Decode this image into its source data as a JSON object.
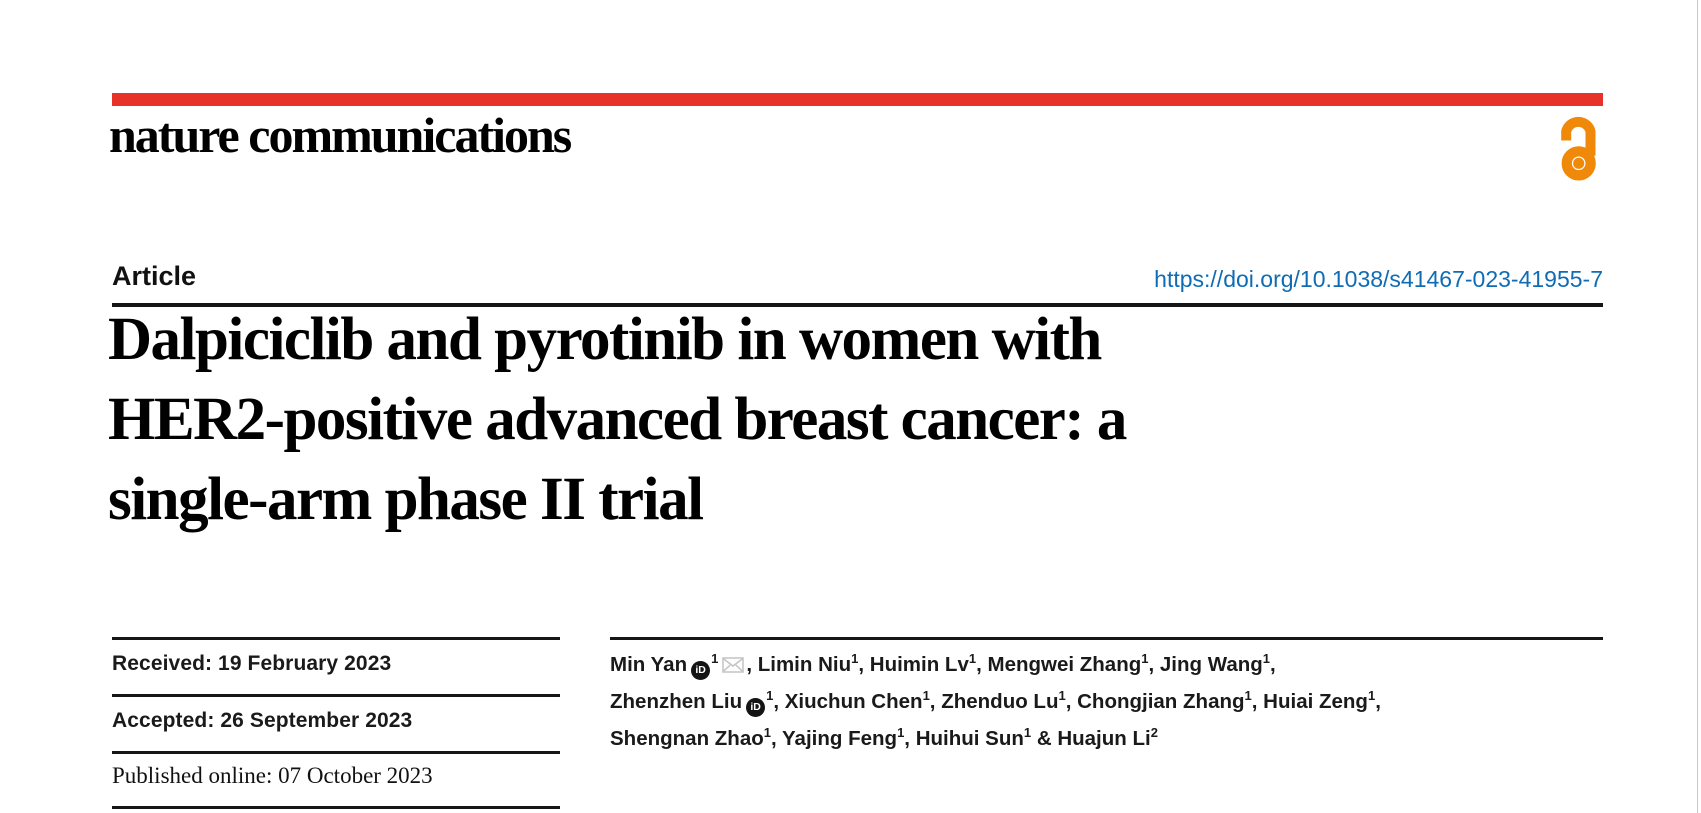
{
  "journal": {
    "logo": "nature communications"
  },
  "colors": {
    "brand_bar_red": "#e63228",
    "open_access_orange": "#f0890a",
    "doi_link_blue": "#0f6cb4"
  },
  "header": {
    "open_access_icon": "open-access-unlocked-padlock"
  },
  "article": {
    "label": "Article",
    "doi": "https://doi.org/10.1038/s41467-023-41955-7",
    "title_lines": [
      "Dalpiciclib and pyrotinib in women with",
      "HER2-positive advanced breast cancer: a",
      "single-arm phase II trial"
    ]
  },
  "dates": [
    {
      "text": "Received: 19 February 2023"
    },
    {
      "text": "Accepted: 26 September 2023"
    },
    {
      "text": "Published online: 07 October 2023"
    }
  ],
  "authors": {
    "list": [
      {
        "name": "Min Yan",
        "orcid": true,
        "sup": "1",
        "mail": true,
        "suffix": ", "
      },
      {
        "name": "Limin Niu",
        "sup": "1",
        "suffix": ", "
      },
      {
        "name": "Huimin Lv",
        "sup": "1",
        "suffix": ", "
      },
      {
        "name": "Mengwei Zhang",
        "sup": "1",
        "suffix": ", "
      },
      {
        "name": "Jing Wang",
        "sup": "1",
        "suffix": ",",
        "br": true
      },
      {
        "name": "Zhenzhen Liu",
        "orcid": true,
        "sup": "1",
        "suffix": ", "
      },
      {
        "name": "Xiuchun Chen",
        "sup": "1",
        "suffix": ", "
      },
      {
        "name": "Zhenduo Lu",
        "sup": "1",
        "suffix": ", "
      },
      {
        "name": "Chongjian Zhang",
        "sup": "1",
        "suffix": ", "
      },
      {
        "name": "Huiai Zeng",
        "sup": "1",
        "suffix": ",",
        "br": true
      },
      {
        "name": "Shengnan Zhao",
        "sup": "1",
        "suffix": ", "
      },
      {
        "name": "Yajing Feng",
        "sup": "1",
        "suffix": ", "
      },
      {
        "name": "Huihui Sun",
        "sup": "1",
        "suffix": " & "
      },
      {
        "name": "Huajun Li",
        "sup": "2",
        "suffix": ""
      }
    ]
  }
}
